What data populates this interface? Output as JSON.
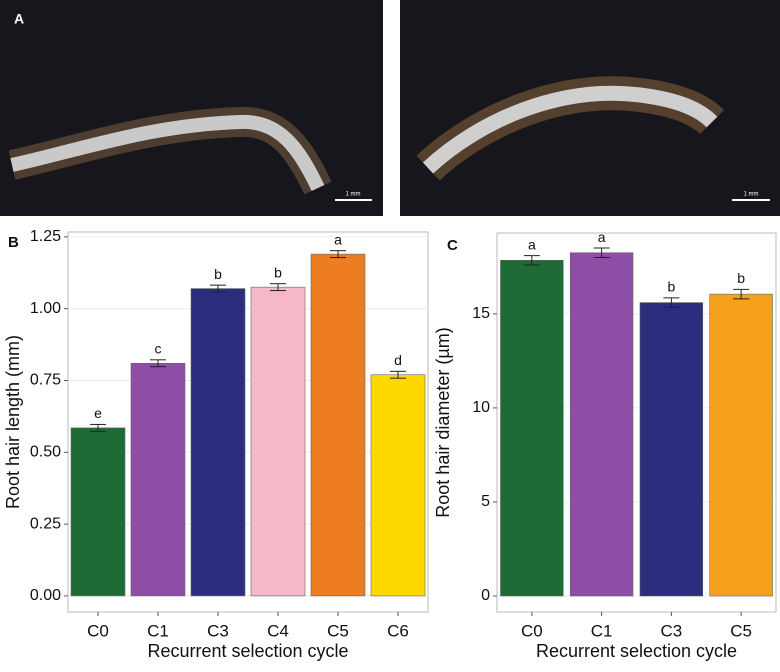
{
  "photos": [
    {
      "label": "A",
      "scale_bar": "1 mm"
    },
    {
      "scale_bar": "1 mm"
    }
  ],
  "chart_data": [
    {
      "type": "bar",
      "panel_label": "B",
      "x_label": "Recurrent selection cycle",
      "y_label": "Root hair length (mm)",
      "categories": [
        "C0",
        "C1",
        "C3",
        "C4",
        "C5",
        "C6"
      ],
      "values": [
        0.585,
        0.81,
        1.07,
        1.075,
        1.19,
        0.77
      ],
      "errors": [
        0.012,
        0.012,
        0.012,
        0.012,
        0.012,
        0.012
      ],
      "annotations": [
        "e",
        "c",
        "b",
        "b",
        "a",
        "d"
      ],
      "colors": [
        "#1e6b35",
        "#8e4ea6",
        "#2d2d7e",
        "#f4b8c8",
        "#ee7d22",
        "#ffd800"
      ],
      "ylim": [
        -0.056,
        1.267
      ],
      "yticks": [
        {
          "value": 0,
          "label": "0.00"
        },
        0.25,
        {
          "value": 0.5,
          "label": "0.50"
        },
        0.75,
        {
          "value": 1,
          "label": "1.00"
        },
        1.25
      ],
      "grid": true
    },
    {
      "type": "bar",
      "panel_label": "C",
      "x_label": "Recurrent selection cycle",
      "y_label": "Root hair diameter (µm)",
      "categories": [
        "C0",
        "C1",
        "C3",
        "C5"
      ],
      "values": [
        17.85,
        18.25,
        15.6,
        16.05
      ],
      "errors": [
        0.25,
        0.25,
        0.25,
        0.25
      ],
      "annotations": [
        "a",
        "a",
        "b",
        "b"
      ],
      "colors": [
        "#1e6b35",
        "#8e4ea6",
        "#2d2d7e",
        "#f5a11c"
      ],
      "ylim": [
        -0.85,
        19.3
      ],
      "yticks": [
        0,
        5,
        10,
        15
      ],
      "grid": true
    }
  ]
}
